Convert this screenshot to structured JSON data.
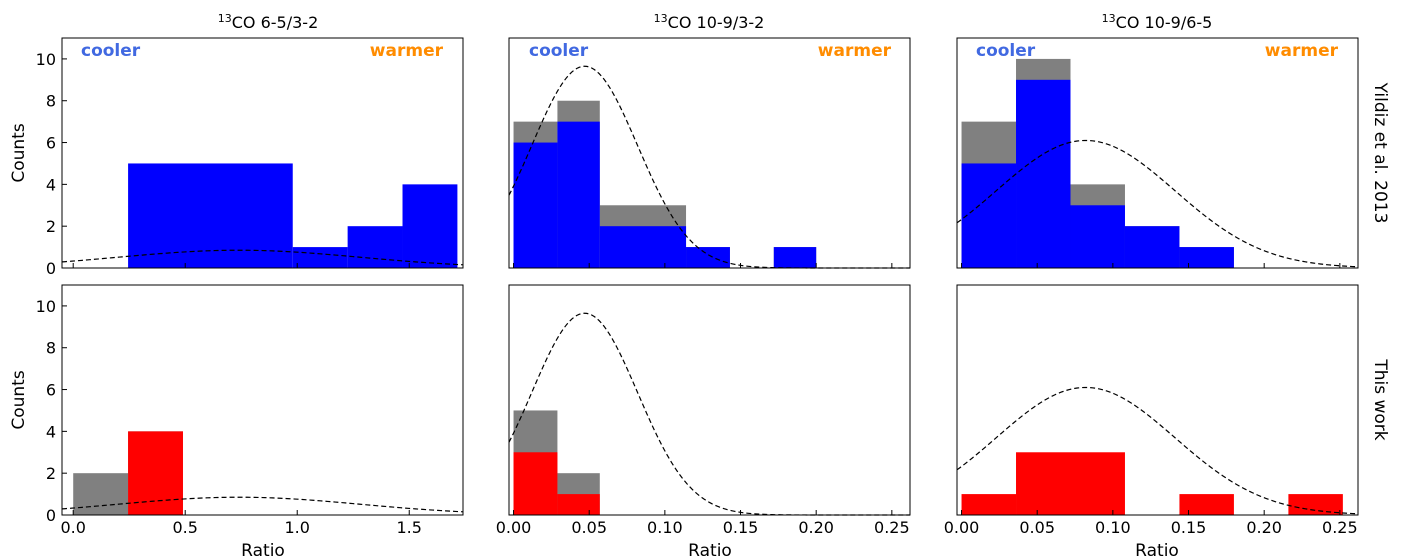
{
  "figure": {
    "row_labels": [
      "Yildiz et al. 2013",
      "This work"
    ],
    "ylabel": "Counts",
    "xlabel": "Ratio",
    "cooler_label": "cooler",
    "warmer_label": "warmer",
    "colors": {
      "cooler": "#4169e1",
      "warmer": "#ff8c00",
      "top_bars": "#0000ff",
      "bottom_bars": "#ff0000",
      "upper_limits": "#808080"
    }
  },
  "chart_data": [
    {
      "type": "bar",
      "histogram": true,
      "title_sup": "13",
      "title_rest": "CO 6-5/3-2",
      "row": "Yildiz et al. 2013",
      "xlim": [
        -0.05,
        1.74
      ],
      "ylim": [
        0,
        11
      ],
      "xticks": [
        "0.0",
        "0.5",
        "1.0",
        "1.5"
      ],
      "yticks": [
        "0",
        "2",
        "4",
        "6",
        "8",
        "10"
      ],
      "bins": [
        [
          0.245,
          0.98
        ],
        [
          0.98,
          1.225
        ],
        [
          1.225,
          1.47
        ],
        [
          1.47,
          1.715
        ]
      ],
      "series": [
        {
          "values": [
            5,
            1,
            2,
            4
          ]
        }
      ],
      "gaussian": {
        "peak": 0.85,
        "mean": 0.74,
        "sigma": 0.54
      }
    },
    {
      "type": "bar",
      "histogram": true,
      "title_sup": "13",
      "title_rest": "CO 10-9/3-2",
      "row": "Yildiz et al. 2013",
      "xlim": [
        -0.003,
        0.262
      ],
      "ylim": [
        0,
        11
      ],
      "xticks": [
        "0.00",
        "0.05",
        "0.10",
        "0.15",
        "0.20",
        "0.25"
      ],
      "yticks": [
        "0",
        "2",
        "4",
        "6",
        "8",
        "10"
      ],
      "bins": [
        [
          0.0,
          0.029
        ],
        [
          0.029,
          0.057
        ],
        [
          0.057,
          0.114
        ],
        [
          0.114,
          0.143
        ],
        [
          0.172,
          0.2
        ]
      ],
      "series": [
        {
          "values": [
            6,
            7,
            2,
            1,
            1
          ]
        },
        {
          "values": [
            7,
            8,
            3,
            1,
            1
          ]
        }
      ],
      "gaussian": {
        "peak": 9.65,
        "mean": 0.047,
        "sigma": 0.035
      }
    },
    {
      "type": "bar",
      "histogram": true,
      "title_sup": "13",
      "title_rest": "CO 10-9/6-5",
      "row": "Yildiz et al. 2013",
      "xlim": [
        -0.003,
        0.262
      ],
      "ylim": [
        0,
        11
      ],
      "xticks": [
        "0.00",
        "0.05",
        "0.10",
        "0.15",
        "0.20",
        "0.25"
      ],
      "yticks": [
        "0",
        "2",
        "4",
        "6",
        "8",
        "10"
      ],
      "bins": [
        [
          0.0,
          0.036
        ],
        [
          0.036,
          0.072
        ],
        [
          0.072,
          0.108
        ],
        [
          0.108,
          0.144
        ],
        [
          0.144,
          0.18
        ]
      ],
      "series": [
        {
          "values": [
            5,
            9,
            3,
            2,
            1
          ]
        },
        {
          "values": [
            7,
            10,
            4,
            2,
            1
          ]
        }
      ],
      "gaussian": {
        "peak": 6.1,
        "mean": 0.082,
        "sigma": 0.059
      }
    },
    {
      "type": "bar",
      "histogram": true,
      "row": "This work",
      "xlim": [
        -0.05,
        1.74
      ],
      "ylim": [
        0,
        11
      ],
      "xticks": [
        "0.0",
        "0.5",
        "1.0",
        "1.5"
      ],
      "yticks": [
        "0",
        "2",
        "4",
        "6",
        "8",
        "10"
      ],
      "bins": [
        [
          0.0,
          0.245
        ],
        [
          0.245,
          0.49
        ]
      ],
      "series": [
        {
          "values": [
            0,
            4
          ]
        },
        {
          "values": [
            2,
            4
          ]
        }
      ],
      "gaussian": {
        "peak": 0.85,
        "mean": 0.74,
        "sigma": 0.54
      }
    },
    {
      "type": "bar",
      "histogram": true,
      "row": "This work",
      "xlim": [
        -0.003,
        0.262
      ],
      "ylim": [
        0,
        11
      ],
      "xticks": [
        "0.00",
        "0.05",
        "0.10",
        "0.15",
        "0.20",
        "0.25"
      ],
      "yticks": [
        "0",
        "2",
        "4",
        "6",
        "8",
        "10"
      ],
      "bins": [
        [
          0.0,
          0.029
        ],
        [
          0.029,
          0.057
        ]
      ],
      "series": [
        {
          "values": [
            3,
            1
          ]
        },
        {
          "values": [
            5,
            2
          ]
        }
      ],
      "gaussian": {
        "peak": 9.65,
        "mean": 0.047,
        "sigma": 0.035
      }
    },
    {
      "type": "bar",
      "histogram": true,
      "row": "This work",
      "xlim": [
        -0.003,
        0.262
      ],
      "ylim": [
        0,
        11
      ],
      "xticks": [
        "0.00",
        "0.05",
        "0.10",
        "0.15",
        "0.20",
        "0.25"
      ],
      "yticks": [
        "0",
        "2",
        "4",
        "6",
        "8",
        "10"
      ],
      "bins": [
        [
          0.0,
          0.036
        ],
        [
          0.036,
          0.108
        ],
        [
          0.144,
          0.18
        ],
        [
          0.216,
          0.252
        ]
      ],
      "series": [
        {
          "values": [
            1,
            3,
            1,
            1
          ]
        }
      ],
      "gaussian": {
        "peak": 6.1,
        "mean": 0.082,
        "sigma": 0.059
      }
    }
  ]
}
